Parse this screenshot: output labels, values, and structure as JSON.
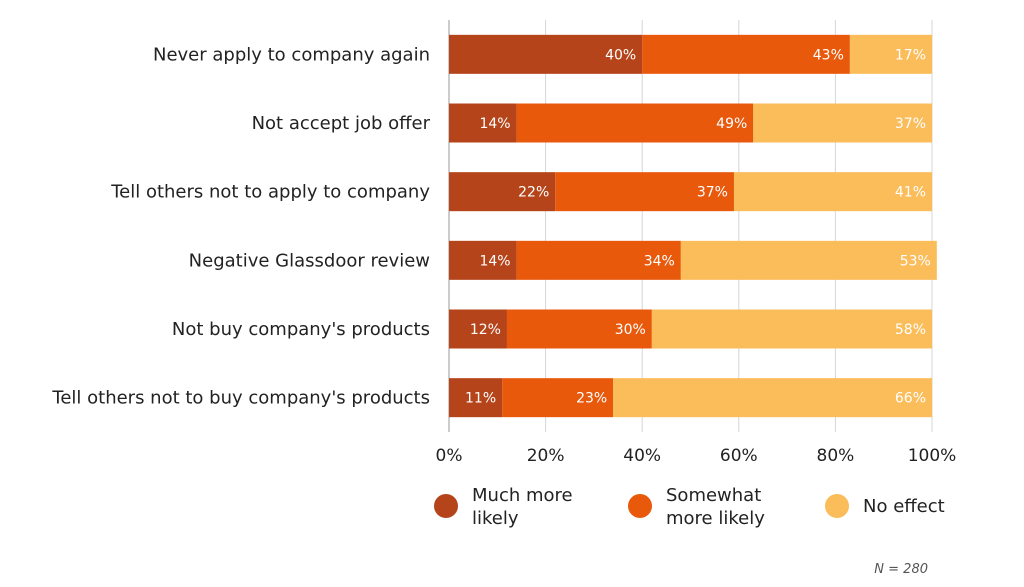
{
  "chart_data": {
    "type": "bar",
    "orientation": "horizontal",
    "stacked": true,
    "categories": [
      "Never apply to company again",
      "Not accept job offer",
      "Tell others not to apply to company",
      "Negative Glassdoor review",
      "Not buy company's products",
      "Tell others not to buy company's products"
    ],
    "series": [
      {
        "name": "Much more likely",
        "legend_lines": [
          "Much more",
          "likely"
        ],
        "color": "#b5441a",
        "values": [
          40,
          14,
          22,
          14,
          12,
          11
        ]
      },
      {
        "name": "Somewhat more likely",
        "legend_lines": [
          "Somewhat",
          "more likely"
        ],
        "color": "#e8590c",
        "values": [
          43,
          49,
          37,
          34,
          30,
          23
        ]
      },
      {
        "name": "No effect",
        "legend_lines": [
          "No effect"
        ],
        "color": "#fbbc5a",
        "values": [
          17,
          37,
          41,
          53,
          58,
          66
        ]
      }
    ],
    "value_suffix": "%",
    "xlim": [
      0,
      100
    ],
    "xticks": [
      0,
      20,
      40,
      60,
      80,
      100
    ],
    "xtick_labels": [
      "0%",
      "20%",
      "40%",
      "60%",
      "80%",
      "100%"
    ],
    "grid": true,
    "legend_position": "bottom",
    "note": "N = 280"
  }
}
